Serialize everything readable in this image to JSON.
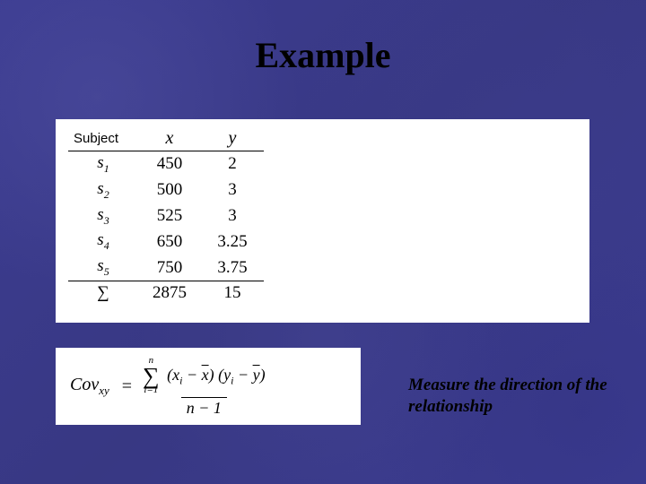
{
  "slide": {
    "background_color": "#3a3a8a",
    "title": "Example",
    "title_fontsize": 40,
    "title_color": "#000000"
  },
  "table": {
    "type": "table",
    "background_color": "#ffffff",
    "headers": {
      "subject": "Subject",
      "x": "x",
      "y": "y"
    },
    "rows": [
      {
        "label_base": "s",
        "label_sub": "1",
        "x": "450",
        "y": "2"
      },
      {
        "label_base": "s",
        "label_sub": "2",
        "x": "500",
        "y": "3"
      },
      {
        "label_base": "s",
        "label_sub": "3",
        "x": "525",
        "y": "3"
      },
      {
        "label_base": "s",
        "label_sub": "4",
        "x": "650",
        "y": "3.25"
      },
      {
        "label_base": "s",
        "label_sub": "5",
        "x": "750",
        "y": "3.75"
      }
    ],
    "sum": {
      "symbol": "∑",
      "x": "2875",
      "y": "15"
    },
    "border_color": "#000000",
    "font_color": "#000000",
    "header_fontsize": 19,
    "cell_fontsize": 19
  },
  "formula": {
    "background_color": "#ffffff",
    "lhs_name": "Cov",
    "lhs_sub": "xy",
    "equals": "=",
    "sum_upper": "n",
    "sum_symbol": "∑",
    "sum_lower": "i=1",
    "term1_open": "(",
    "term1_xi_base": "x",
    "term1_xi_sub": "i",
    "term1_minus": " − ",
    "term1_xbar": "x",
    "term1_close": ")",
    "term2_open": "(",
    "term2_yi_base": "y",
    "term2_yi_sub": "i",
    "term2_minus": " − ",
    "term2_ybar": "y",
    "term2_close": ")",
    "denom": "n − 1"
  },
  "caption": {
    "text": "Measure the direction of the relationship",
    "color": "#000000",
    "fontsize": 19,
    "font_style": "italic bold"
  }
}
